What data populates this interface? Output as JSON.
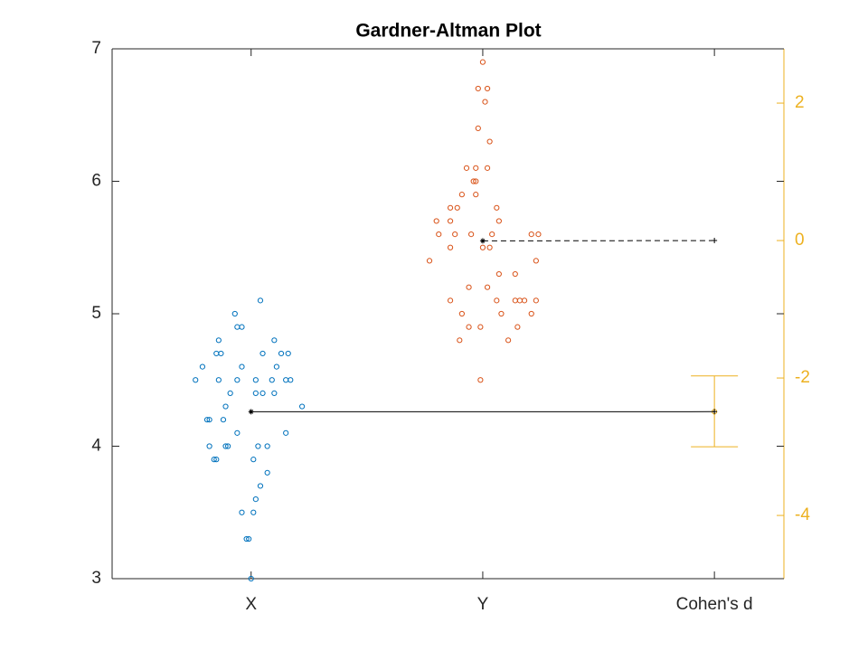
{
  "chart_data": {
    "type": "scatter",
    "title": "Gardner-Altman Plot",
    "xlim": [
      0.4,
      3.3
    ],
    "xticks": [
      {
        "value": 1,
        "label": "X"
      },
      {
        "value": 2,
        "label": "Y"
      },
      {
        "value": 3,
        "label": "Cohen's d"
      }
    ],
    "ylim": [
      3,
      7
    ],
    "yticks": [
      3,
      4,
      5,
      6,
      7
    ],
    "y2lim": [
      -4.92,
      2.79
    ],
    "y2ticks": [
      -4,
      -2,
      0,
      2
    ],
    "y2color": "#edb120",
    "series": [
      {
        "color": "#0072bd",
        "x": [
          1.04,
          0.93,
          0.94,
          0.96,
          0.86,
          1.1,
          0.85,
          0.87,
          1.05,
          1.13,
          1.16,
          0.79,
          0.96,
          1.11,
          0.76,
          0.86,
          0.94,
          1.02,
          1.09,
          1.15,
          1.17,
          0.91,
          1.02,
          1.05,
          1.1,
          0.89,
          1.22,
          0.81,
          0.82,
          0.88,
          0.94,
          1.15,
          0.82,
          0.89,
          0.9,
          1.03,
          1.07,
          0.84,
          0.85,
          1.01,
          1.07,
          1.04,
          1.02,
          0.96,
          1.01,
          0.98,
          0.99,
          1.0
        ],
        "values": [
          5.1,
          5.0,
          4.9,
          4.9,
          4.8,
          4.8,
          4.7,
          4.7,
          4.7,
          4.7,
          4.7,
          4.6,
          4.6,
          4.6,
          4.5,
          4.5,
          4.5,
          4.5,
          4.5,
          4.5,
          4.5,
          4.4,
          4.4,
          4.4,
          4.4,
          4.3,
          4.3,
          4.2,
          4.2,
          4.2,
          4.1,
          4.1,
          4.0,
          4.0,
          4.0,
          4.0,
          4.0,
          3.9,
          3.9,
          3.9,
          3.8,
          3.7,
          3.6,
          3.5,
          3.5,
          3.3,
          3.3,
          3.0
        ]
      },
      {
        "color": "#d95319",
        "x": [
          2.0,
          1.98,
          2.02,
          2.01,
          1.98,
          2.03,
          1.93,
          1.97,
          2.02,
          1.96,
          1.97,
          1.91,
          1.97,
          1.86,
          1.89,
          2.06,
          1.8,
          1.86,
          2.07,
          1.81,
          1.88,
          1.95,
          2.04,
          2.21,
          2.24,
          1.86,
          2.0,
          2.03,
          2.23,
          1.77,
          2.07,
          2.14,
          1.94,
          2.02,
          1.86,
          2.06,
          2.14,
          2.16,
          2.18,
          2.23,
          1.91,
          2.08,
          2.21,
          1.94,
          1.99,
          2.15,
          1.9,
          2.11,
          1.99
        ],
        "values": [
          6.9,
          6.7,
          6.7,
          6.6,
          6.4,
          6.3,
          6.1,
          6.1,
          6.1,
          6.0,
          6.0,
          5.9,
          5.9,
          5.8,
          5.8,
          5.8,
          5.7,
          5.7,
          5.7,
          5.6,
          5.6,
          5.6,
          5.6,
          5.6,
          5.6,
          5.5,
          5.5,
          5.5,
          5.4,
          5.4,
          5.3,
          5.3,
          5.2,
          5.2,
          5.1,
          5.1,
          5.1,
          5.1,
          5.1,
          5.1,
          5.0,
          5.0,
          5.0,
          4.9,
          4.9,
          4.9,
          4.8,
          4.8,
          4.5
        ]
      }
    ],
    "means": [
      {
        "x": 1,
        "value": 4.26
      },
      {
        "x": 2,
        "value": 5.55
      }
    ],
    "effect": {
      "x": 3,
      "value": -2.49,
      "ci_low": -3.0,
      "ci_high": -1.97,
      "reference": 0,
      "axis": "y2"
    }
  }
}
